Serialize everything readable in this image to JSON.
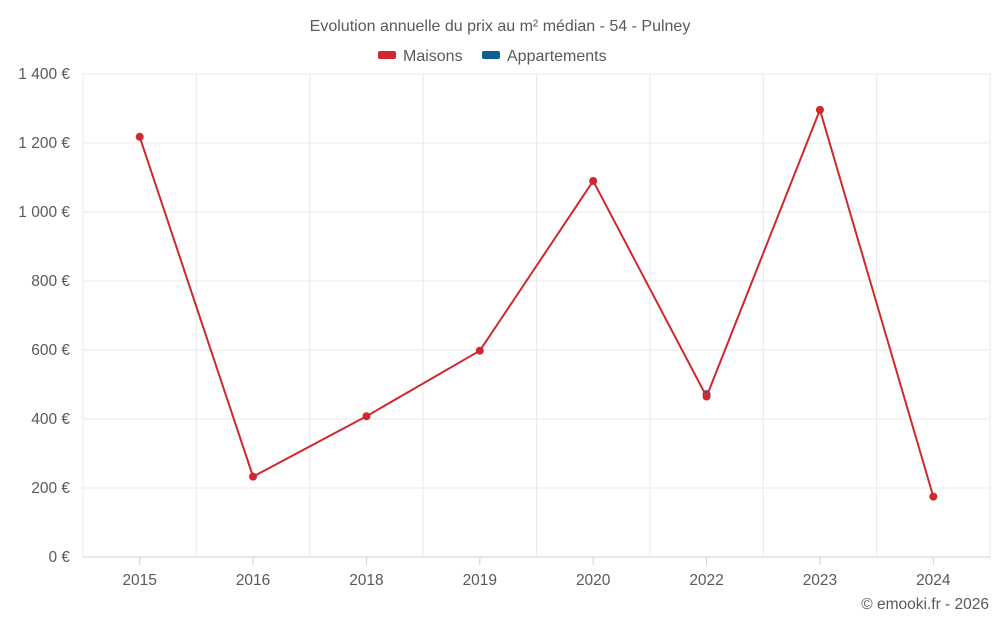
{
  "chart_data": {
    "type": "line",
    "title": "Evolution annuelle du prix au m² médian - 54 - Pulney",
    "categories": [
      "2015",
      "2016",
      "2018",
      "2019",
      "2020",
      "2022",
      "2023",
      "2024"
    ],
    "series": [
      {
        "name": "Maisons",
        "color": "#d0282e",
        "values": [
          1218,
          233,
          408,
          598,
          1090,
          465,
          1296,
          175
        ]
      },
      {
        "name": "Appartements",
        "color": "#0f5e91",
        "values": [
          null,
          null,
          null,
          null,
          null,
          472,
          null,
          null
        ]
      }
    ],
    "ylim": [
      0,
      1400
    ],
    "yticks": [
      0,
      200,
      400,
      600,
      800,
      1000,
      1200,
      1400
    ],
    "ytick_labels": [
      "0 €",
      "200 €",
      "400 €",
      "600 €",
      "800 €",
      "1 000 €",
      "1 200 €",
      "1 400 €"
    ],
    "xlabel": "",
    "ylabel": "",
    "grid": true,
    "legend_position": "top-center"
  },
  "credit": "© emooki.fr - 2026"
}
